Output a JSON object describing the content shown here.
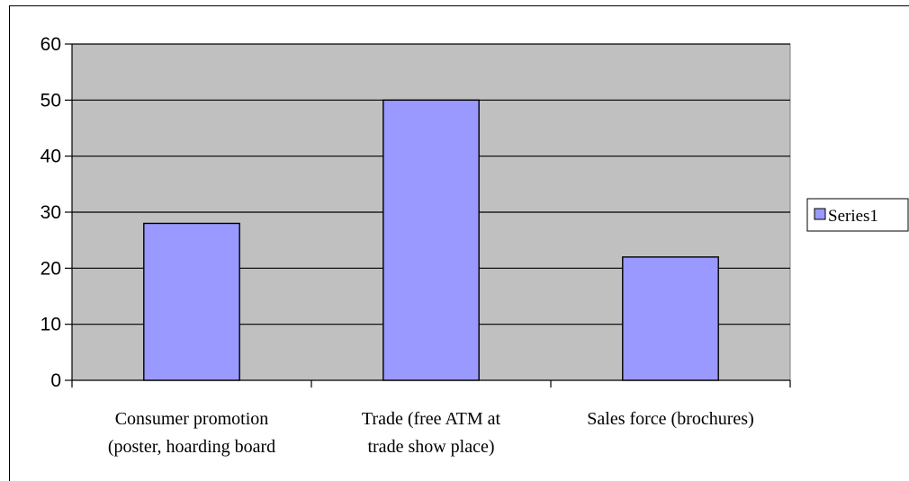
{
  "chart_data": {
    "type": "bar",
    "categories": [
      [
        "Consumer promotion",
        "(poster, hoarding board"
      ],
      [
        "Trade (free ATM at",
        "trade show place)"
      ],
      [
        "Sales force (brochures)"
      ]
    ],
    "series": [
      {
        "name": "Series1",
        "values": [
          28,
          50,
          22
        ],
        "color": "#9999ff"
      }
    ],
    "ylim": [
      0,
      60
    ],
    "yticks": [
      0,
      10,
      20,
      30,
      40,
      50,
      60
    ],
    "grid": true,
    "legend": "right",
    "plot_background": "#c0c0c0"
  }
}
